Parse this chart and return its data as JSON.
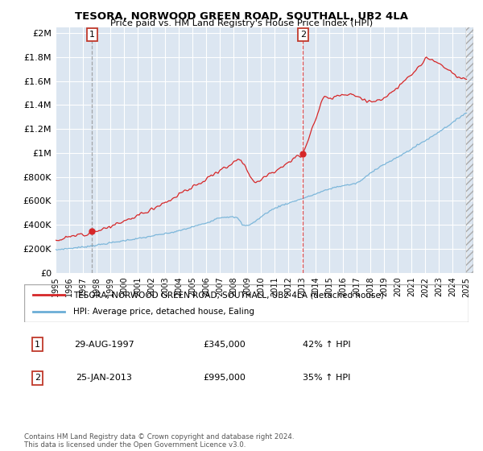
{
  "title": "TESORA, NORWOOD GREEN ROAD, SOUTHALL, UB2 4LA",
  "subtitle": "Price paid vs. HM Land Registry's House Price Index (HPI)",
  "background_color": "#dce6f1",
  "plot_bg_color": "#dce6f1",
  "y_ticks": [
    0,
    200000,
    400000,
    600000,
    800000,
    1000000,
    1200000,
    1400000,
    1600000,
    1800000,
    2000000
  ],
  "y_tick_labels": [
    "£0",
    "£200K",
    "£400K",
    "£600K",
    "£800K",
    "£1M",
    "£1.2M",
    "£1.4M",
    "£1.6M",
    "£1.8M",
    "£2M"
  ],
  "x_start": 1995.0,
  "x_end": 2025.5,
  "x_ticks": [
    1995,
    1996,
    1997,
    1998,
    1999,
    2000,
    2001,
    2002,
    2003,
    2004,
    2005,
    2006,
    2007,
    2008,
    2009,
    2010,
    2011,
    2012,
    2013,
    2014,
    2015,
    2016,
    2017,
    2018,
    2019,
    2020,
    2021,
    2022,
    2023,
    2024,
    2025
  ],
  "sale1_x": 1997.66,
  "sale1_y": 345000,
  "sale2_x": 2013.07,
  "sale2_y": 995000,
  "sale1_label": "1",
  "sale2_label": "2",
  "sale1_date": "29-AUG-1997",
  "sale1_price": "£345,000",
  "sale1_hpi": "42% ↑ HPI",
  "sale2_date": "25-JAN-2013",
  "sale2_price": "£995,000",
  "sale2_hpi": "35% ↑ HPI",
  "legend_line1": "TESORA, NORWOOD GREEN ROAD, SOUTHALL, UB2 4LA (detached house)",
  "legend_line2": "HPI: Average price, detached house, Ealing",
  "footer": "Contains HM Land Registry data © Crown copyright and database right 2024.\nThis data is licensed under the Open Government Licence v3.0.",
  "hpi_color": "#6baed6",
  "price_color": "#d62728",
  "sale1_vline_color": "#888888",
  "sale2_vline_color": "#d62728"
}
